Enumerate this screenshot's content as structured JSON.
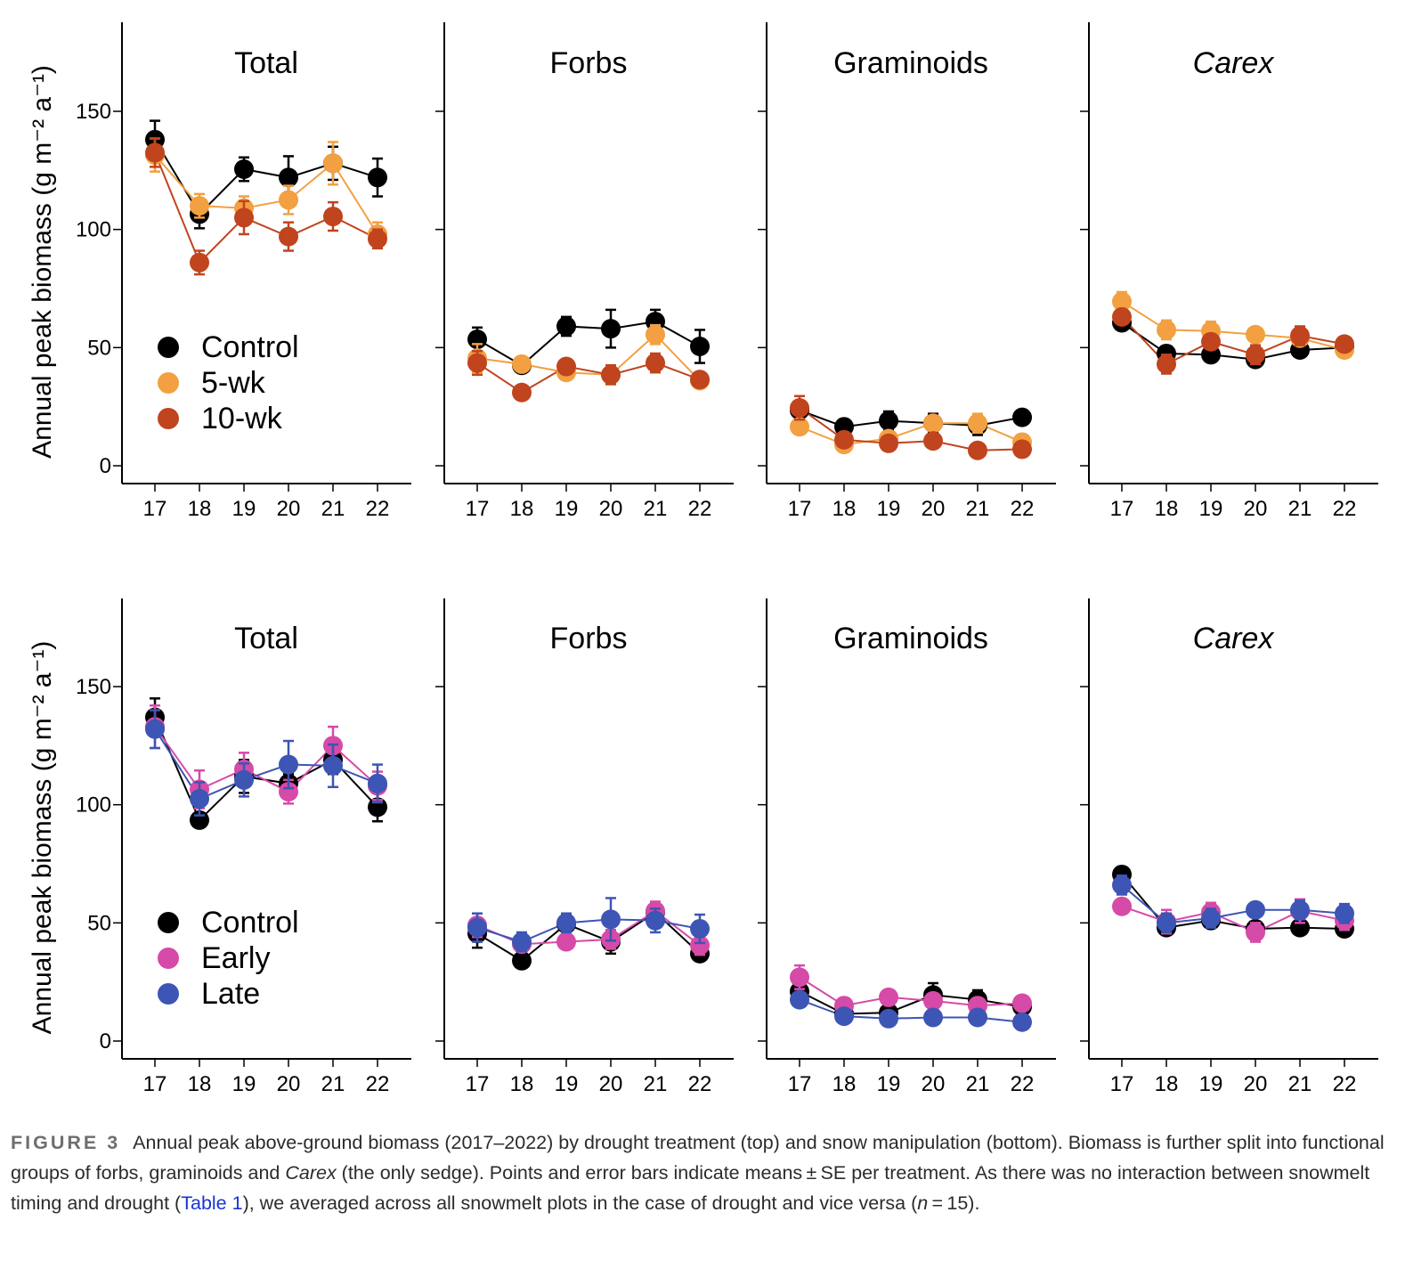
{
  "chart_data": [
    {
      "type": "line",
      "row": "top",
      "title": "Total",
      "title_italic": false,
      "ylabel": "Annual peak biomass  (g m⁻² a⁻¹)",
      "xlabel": "",
      "categories": [
        "17",
        "18",
        "19",
        "20",
        "21",
        "22"
      ],
      "yticks": [
        0,
        50,
        100,
        150
      ],
      "ylim": [
        -7,
        188
      ],
      "legend": {
        "placement": "center-left",
        "entries": [
          "Control",
          "5-wk",
          "10-wk"
        ]
      },
      "series": [
        {
          "name": "Control",
          "color": "#000000",
          "values": [
            138,
            106.5,
            125.5,
            122,
            128,
            122
          ],
          "se": [
            8,
            6,
            5,
            9,
            7,
            8
          ]
        },
        {
          "name": "5-wk",
          "color": "#f2a041",
          "values": [
            131.5,
            110,
            109,
            112.5,
            128,
            98
          ],
          "se": [
            7,
            5,
            5,
            6,
            9,
            5
          ]
        },
        {
          "name": "10-wk",
          "color": "#c0441e",
          "values": [
            132.5,
            86,
            105,
            97,
            105.5,
            96
          ],
          "se": [
            6,
            5,
            7,
            6,
            6,
            4
          ]
        }
      ]
    },
    {
      "type": "line",
      "row": "top",
      "title": "Forbs",
      "title_italic": false,
      "categories": [
        "17",
        "18",
        "19",
        "20",
        "21",
        "22"
      ],
      "yticks": [
        0,
        50,
        100,
        150
      ],
      "ylim": [
        -7,
        188
      ],
      "series": [
        {
          "name": "Control",
          "color": "#000000",
          "values": [
            53.5,
            42.5,
            59,
            58,
            61,
            50.5
          ],
          "se": [
            5,
            3,
            4,
            8,
            5,
            7
          ]
        },
        {
          "name": "5-wk",
          "color": "#f2a041",
          "values": [
            45.5,
            43,
            39.5,
            38.5,
            55.5,
            36
          ],
          "se": [
            6,
            3,
            3,
            3,
            4,
            3
          ]
        },
        {
          "name": "10-wk",
          "color": "#c0441e",
          "values": [
            43.5,
            31,
            42,
            38.5,
            43.5,
            36.5
          ],
          "se": [
            5,
            2,
            3,
            4,
            4,
            3
          ]
        }
      ]
    },
    {
      "type": "line",
      "row": "top",
      "title": "Graminoids",
      "title_italic": false,
      "categories": [
        "17",
        "18",
        "19",
        "20",
        "21",
        "22"
      ],
      "yticks": [
        0,
        50,
        100,
        150
      ],
      "ylim": [
        -7,
        188
      ],
      "series": [
        {
          "name": "Control",
          "color": "#000000",
          "values": [
            23.5,
            16.5,
            19,
            18,
            17,
            20.5
          ],
          "se": [
            3,
            2,
            4,
            4,
            4,
            3
          ]
        },
        {
          "name": "5-wk",
          "color": "#f2a041",
          "values": [
            16.5,
            9,
            11.5,
            18,
            18,
            10
          ],
          "se": [
            2,
            2,
            2,
            3,
            4,
            2
          ]
        },
        {
          "name": "10-wk",
          "color": "#c0441e",
          "values": [
            24.5,
            11,
            9.5,
            10.5,
            6.5,
            7
          ],
          "se": [
            5,
            2,
            2,
            2,
            2,
            2
          ]
        }
      ]
    },
    {
      "type": "line",
      "row": "top",
      "title": "Carex",
      "title_italic": true,
      "categories": [
        "17",
        "18",
        "19",
        "20",
        "21",
        "22"
      ],
      "yticks": [
        0,
        50,
        100,
        150
      ],
      "ylim": [
        -7,
        188
      ],
      "series": [
        {
          "name": "Control",
          "color": "#000000",
          "values": [
            60.5,
            47.5,
            47,
            45,
            49,
            50
          ],
          "se": [
            3,
            3,
            2,
            3,
            2,
            3
          ]
        },
        {
          "name": "5-wk",
          "color": "#f2a041",
          "values": [
            69.5,
            57.5,
            57,
            55.5,
            54,
            49
          ],
          "se": [
            4,
            4,
            4,
            3,
            3,
            3
          ]
        },
        {
          "name": "10-wk",
          "color": "#c0441e",
          "values": [
            63,
            43,
            52.5,
            47,
            55,
            51.5
          ],
          "se": [
            3,
            4,
            3,
            4,
            4,
            3
          ]
        }
      ]
    },
    {
      "type": "line",
      "row": "bottom",
      "title": "Total",
      "title_italic": false,
      "ylabel": "Annual peak biomass (g m⁻² a⁻¹)",
      "xlabel": "",
      "categories": [
        "17",
        "18",
        "19",
        "20",
        "21",
        "22"
      ],
      "yticks": [
        0,
        50,
        100,
        150
      ],
      "ylim": [
        -7,
        188
      ],
      "legend": {
        "placement": "center-left",
        "entries": [
          "Control",
          "Early",
          "Late"
        ]
      },
      "series": [
        {
          "name": "Control",
          "color": "#000000",
          "values": [
            137,
            93.5,
            112,
            109,
            119,
            99
          ],
          "se": [
            8,
            3,
            7,
            4,
            6,
            6
          ]
        },
        {
          "name": "Early",
          "color": "#d64aa8",
          "values": [
            133,
            106.5,
            115,
            105.5,
            125,
            108
          ],
          "se": [
            9,
            8,
            7,
            5,
            8,
            6
          ]
        },
        {
          "name": "Late",
          "color": "#3d55b4",
          "values": [
            132,
            102.5,
            110.5,
            117,
            116.5,
            109
          ],
          "se": [
            8,
            7,
            7,
            10,
            9,
            8
          ]
        }
      ]
    },
    {
      "type": "line",
      "row": "bottom",
      "title": "Forbs",
      "title_italic": false,
      "categories": [
        "17",
        "18",
        "19",
        "20",
        "21",
        "22"
      ],
      "yticks": [
        0,
        50,
        100,
        150
      ],
      "ylim": [
        -7,
        188
      ],
      "series": [
        {
          "name": "Control",
          "color": "#000000",
          "values": [
            45.5,
            34,
            49.5,
            42,
            54.5,
            37
          ],
          "se": [
            6,
            2,
            3,
            5,
            3,
            2
          ]
        },
        {
          "name": "Early",
          "color": "#d64aa8",
          "values": [
            49,
            41,
            42,
            43,
            55,
            40.5
          ],
          "se": [
            5,
            3,
            3,
            4,
            4,
            4
          ]
        },
        {
          "name": "Late",
          "color": "#3d55b4",
          "values": [
            48,
            42,
            50,
            51.5,
            51,
            47.5
          ],
          "se": [
            6,
            4,
            4,
            9,
            5,
            6
          ]
        }
      ]
    },
    {
      "type": "line",
      "row": "bottom",
      "title": "Graminoids",
      "title_italic": false,
      "categories": [
        "17",
        "18",
        "19",
        "20",
        "21",
        "22"
      ],
      "yticks": [
        0,
        50,
        100,
        150
      ],
      "ylim": [
        -7,
        188
      ],
      "series": [
        {
          "name": "Control",
          "color": "#000000",
          "values": [
            21,
            11.5,
            12,
            19.5,
            17.5,
            14.5
          ],
          "se": [
            3,
            2,
            3,
            5,
            4,
            2
          ]
        },
        {
          "name": "Early",
          "color": "#d64aa8",
          "values": [
            27,
            15,
            18.5,
            17,
            15,
            16
          ],
          "se": [
            5,
            3,
            3,
            3,
            3,
            3
          ]
        },
        {
          "name": "Late",
          "color": "#3d55b4",
          "values": [
            17.5,
            10.5,
            9.5,
            10,
            10,
            8
          ],
          "se": [
            2,
            2,
            2,
            2,
            2,
            2
          ]
        }
      ]
    },
    {
      "type": "line",
      "row": "bottom",
      "title": "Carex",
      "title_italic": true,
      "categories": [
        "17",
        "18",
        "19",
        "20",
        "21",
        "22"
      ],
      "yticks": [
        0,
        50,
        100,
        150
      ],
      "ylim": [
        -7,
        188
      ],
      "series": [
        {
          "name": "Control",
          "color": "#000000",
          "values": [
            70.5,
            48,
            51,
            47.5,
            48,
            47.5
          ],
          "se": [
            3,
            3,
            3,
            2,
            2,
            2
          ]
        },
        {
          "name": "Early",
          "color": "#d64aa8",
          "values": [
            57,
            50.5,
            54.5,
            46,
            55,
            51
          ],
          "se": [
            3,
            5,
            4,
            4,
            5,
            4
          ]
        },
        {
          "name": "Late",
          "color": "#3d55b4",
          "values": [
            66,
            50,
            52,
            55.5,
            55.5,
            54
          ],
          "se": [
            4,
            4,
            4,
            3,
            4,
            4
          ]
        }
      ]
    }
  ],
  "caption": {
    "label": "FIGURE 3",
    "part1": "Annual peak above-ground biomass (2017–2022) by drought treatment (top) and snow manipulation (bottom). Biomass is further split into functional groups of forbs, graminoids and ",
    "carex": "Carex",
    "part2": " (the only sedge). Points and error bars indicate means ± SE per treatment. As there was no interaction between snowmelt timing and drought (",
    "link": "Table 1",
    "part3": "), we averaged across all snowmelt plots in the case of drought and vice versa (",
    "n_symbol": "n",
    "part4": " = 15)."
  }
}
